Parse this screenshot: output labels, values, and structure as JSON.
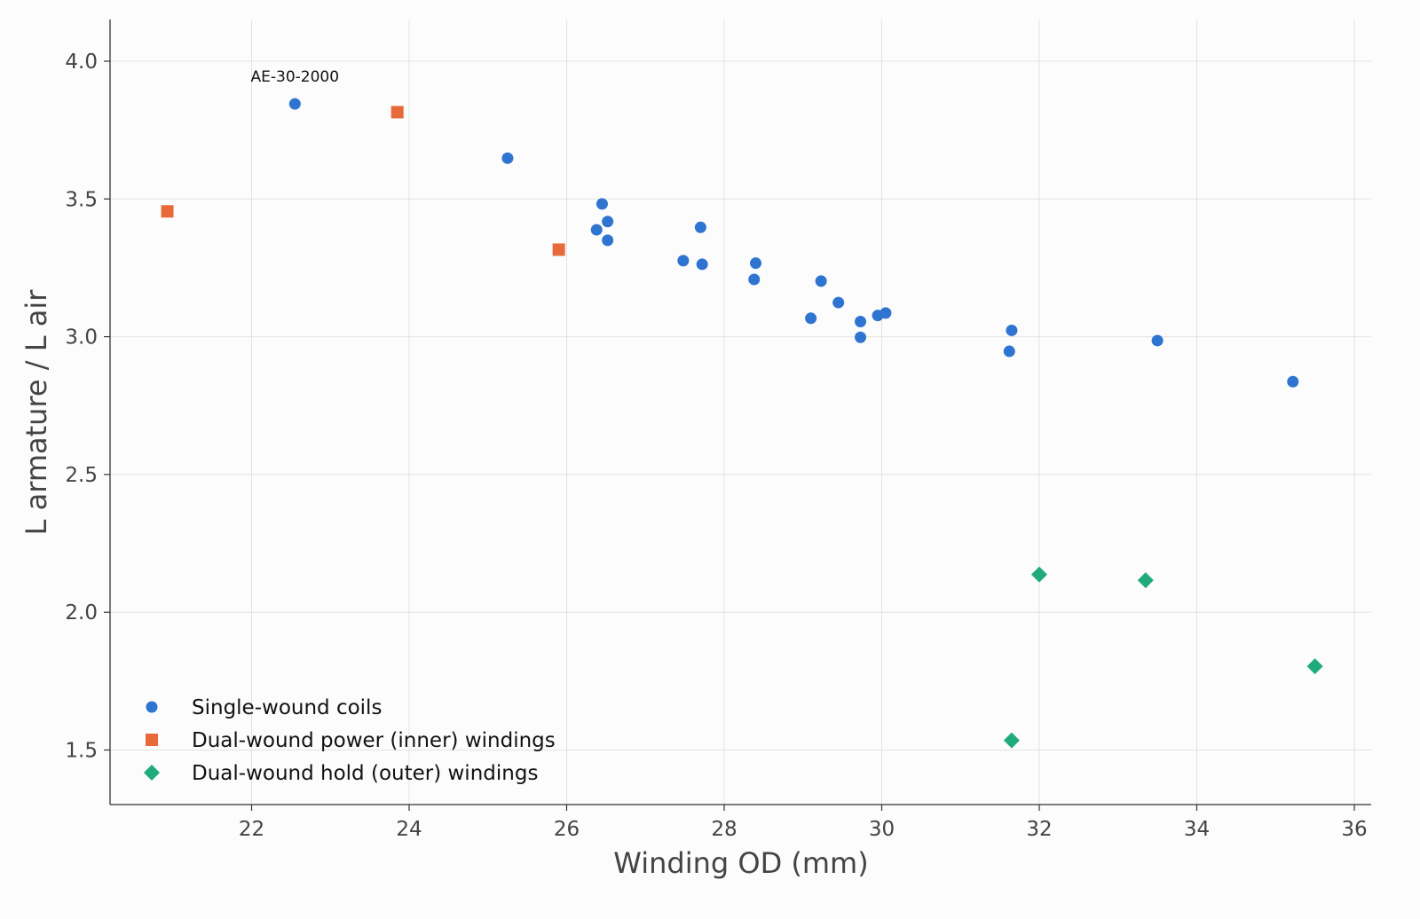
{
  "chart_data": {
    "type": "scatter",
    "title": "",
    "xlabel": "Winding OD (mm)",
    "ylabel": "L armature / L air",
    "xlim": [
      20.2,
      36.2
    ],
    "ylim": [
      1.3,
      4.15
    ],
    "x_ticks": [
      22,
      24,
      26,
      28,
      30,
      32,
      34,
      36
    ],
    "y_ticks": [
      1.5,
      2.0,
      2.5,
      3.0,
      3.5,
      4.0
    ],
    "x_tick_labels": [
      "22",
      "24",
      "26",
      "28",
      "30",
      "32",
      "34",
      "36"
    ],
    "y_tick_labels": [
      "1.5",
      "2.0",
      "2.5",
      "3.0",
      "3.5",
      "4.0"
    ],
    "grid": true,
    "legend_position": "bottom-left",
    "series": [
      {
        "name": "Single-wound coils",
        "marker": "circle",
        "color": "#2f74d0",
        "points": [
          {
            "x": 22.55,
            "y": 3.845
          },
          {
            "x": 25.25,
            "y": 3.648
          },
          {
            "x": 26.45,
            "y": 3.482
          },
          {
            "x": 26.52,
            "y": 3.418
          },
          {
            "x": 26.38,
            "y": 3.388
          },
          {
            "x": 26.52,
            "y": 3.35
          },
          {
            "x": 27.7,
            "y": 3.397
          },
          {
            "x": 27.48,
            "y": 3.276
          },
          {
            "x": 27.72,
            "y": 3.263
          },
          {
            "x": 28.4,
            "y": 3.267
          },
          {
            "x": 28.38,
            "y": 3.208
          },
          {
            "x": 29.23,
            "y": 3.202
          },
          {
            "x": 29.45,
            "y": 3.124
          },
          {
            "x": 29.1,
            "y": 3.067
          },
          {
            "x": 29.73,
            "y": 3.055
          },
          {
            "x": 29.95,
            "y": 3.077
          },
          {
            "x": 30.05,
            "y": 3.086
          },
          {
            "x": 29.73,
            "y": 2.998
          },
          {
            "x": 31.65,
            "y": 3.023
          },
          {
            "x": 31.62,
            "y": 2.947
          },
          {
            "x": 33.5,
            "y": 2.986
          },
          {
            "x": 35.22,
            "y": 2.837
          }
        ]
      },
      {
        "name": "Dual-wound power (inner) windings",
        "marker": "square",
        "color": "#e8693a",
        "points": [
          {
            "x": 20.93,
            "y": 3.455
          },
          {
            "x": 23.85,
            "y": 3.815
          },
          {
            "x": 25.9,
            "y": 3.316
          }
        ]
      },
      {
        "name": "Dual-wound hold (outer) windings",
        "marker": "diamond",
        "color": "#1fab7d",
        "points": [
          {
            "x": 32.0,
            "y": 2.137
          },
          {
            "x": 33.35,
            "y": 2.116
          },
          {
            "x": 35.5,
            "y": 1.804
          },
          {
            "x": 31.65,
            "y": 1.535
          }
        ]
      }
    ],
    "annotations": [
      {
        "text": "AE-30-2000",
        "x": 22.55,
        "y": 3.845
      }
    ]
  }
}
